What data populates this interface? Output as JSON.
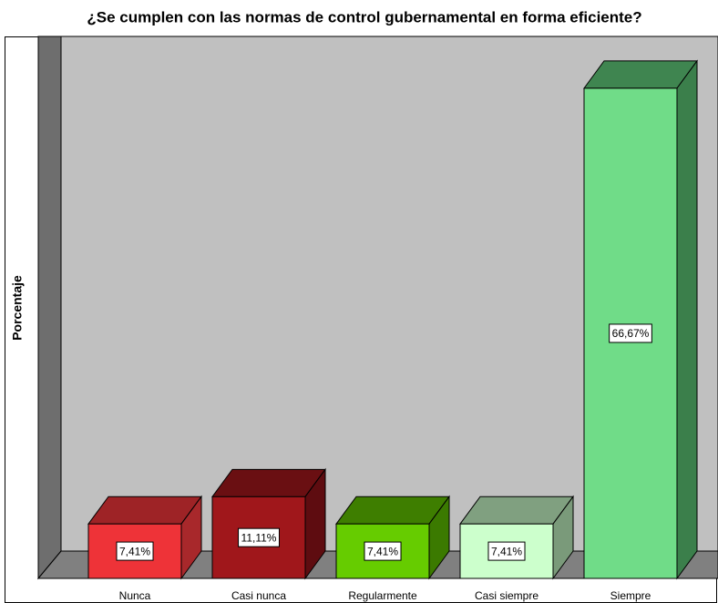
{
  "chart_data": {
    "type": "bar3d",
    "title": "¿Se cumplen con las normas de control gubernamental en forma eficiente?",
    "y_label": "Porcentaje",
    "categories": [
      "Nunca",
      "Casi nunca",
      "Regularmente",
      "Casi siempre",
      "Siempre"
    ],
    "values": [
      7.41,
      11.11,
      7.41,
      7.41,
      66.67
    ],
    "value_labels": [
      "7,41%",
      "11,11%",
      "7,41%",
      "7,41%",
      "66,67%"
    ],
    "colors": [
      {
        "front": "#ee3338",
        "top": "#9e2326",
        "side": "#a8282b"
      },
      {
        "front": "#a0171b",
        "top": "#6a0f12",
        "side": "#5e0c10"
      },
      {
        "front": "#66cc00",
        "top": "#3e7e00",
        "side": "#3b7a00"
      },
      {
        "front": "#ccffcc",
        "top": "#80a080",
        "side": "#7a9a7a"
      },
      {
        "front": "#70dc88",
        "top": "#3f8550",
        "side": "#3b7f4b"
      }
    ],
    "ylim": [
      0,
      70
    ]
  }
}
